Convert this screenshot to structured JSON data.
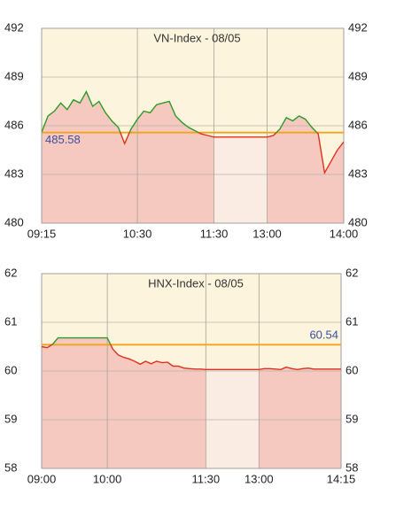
{
  "chart_data": [
    {
      "type": "line",
      "title": "VN-Index - 08/05",
      "x": [
        "09:15",
        "09:20",
        "09:25",
        "09:30",
        "09:35",
        "09:40",
        "09:45",
        "09:50",
        "09:55",
        "10:00",
        "10:05",
        "10:10",
        "10:15",
        "10:20",
        "10:25",
        "10:30",
        "10:35",
        "10:40",
        "10:45",
        "10:50",
        "10:55",
        "11:00",
        "11:05",
        "11:10",
        "11:15",
        "11:20",
        "11:25",
        "11:30",
        "13:00",
        "13:05",
        "13:10",
        "13:15",
        "13:20",
        "13:25",
        "13:30",
        "13:35",
        "13:40",
        "13:45",
        "13:50",
        "13:55",
        "14:00"
      ],
      "values": [
        485.6,
        486.6,
        486.9,
        487.4,
        487.0,
        487.6,
        487.4,
        488.1,
        487.2,
        487.5,
        486.8,
        486.3,
        485.9,
        484.9,
        485.8,
        486.4,
        486.9,
        486.8,
        487.3,
        487.4,
        487.5,
        486.6,
        486.2,
        485.9,
        485.7,
        485.5,
        485.4,
        485.3,
        485.3,
        485.4,
        485.8,
        486.5,
        486.3,
        486.6,
        486.4,
        485.9,
        485.5,
        483.1,
        483.8,
        484.5,
        485.0
      ],
      "reference": 485.58,
      "xticks": [
        "09:15",
        "10:30",
        "11:30",
        "13:00",
        "14:00"
      ],
      "break": [
        "11:30",
        "13:00"
      ],
      "ylim": [
        480,
        492
      ],
      "yticks": [
        480,
        483,
        486,
        489,
        492
      ],
      "grid": true,
      "colors": {
        "above": "#2f9a2a",
        "below": "#e0301e",
        "reference": "#f2a31c",
        "fill": "#f5c8c0",
        "break_fill": "#fbece3",
        "background": "#fcf4dc"
      }
    },
    {
      "type": "line",
      "title": "HNX-Index - 08/05",
      "x": [
        "09:00",
        "09:05",
        "09:10",
        "09:15",
        "09:20",
        "09:25",
        "09:30",
        "09:35",
        "09:40",
        "09:45",
        "09:50",
        "09:55",
        "10:00",
        "10:05",
        "10:10",
        "10:15",
        "10:20",
        "10:25",
        "10:30",
        "10:35",
        "10:40",
        "10:45",
        "10:50",
        "10:55",
        "11:00",
        "11:05",
        "11:10",
        "11:15",
        "11:20",
        "11:25",
        "11:30",
        "13:00",
        "13:05",
        "13:10",
        "13:15",
        "13:20",
        "13:25",
        "13:30",
        "13:35",
        "13:40",
        "13:45",
        "13:50",
        "13:55",
        "14:00",
        "14:05",
        "14:10",
        "14:15"
      ],
      "values": [
        60.5,
        60.48,
        60.55,
        60.68,
        60.68,
        60.68,
        60.68,
        60.68,
        60.68,
        60.68,
        60.68,
        60.68,
        60.68,
        60.45,
        60.33,
        60.28,
        60.25,
        60.2,
        60.14,
        60.2,
        60.15,
        60.2,
        60.17,
        60.18,
        60.1,
        60.1,
        60.06,
        60.05,
        60.04,
        60.04,
        60.03,
        60.03,
        60.05,
        60.05,
        60.04,
        60.03,
        60.08,
        60.05,
        60.03,
        60.05,
        60.06,
        60.04,
        60.04,
        60.04,
        60.04,
        60.04,
        60.04
      ],
      "reference": 60.54,
      "xticks": [
        "09:00",
        "10:00",
        "11:30",
        "13:00",
        "14:15"
      ],
      "break": [
        "11:30",
        "13:00"
      ],
      "ylim": [
        58,
        62
      ],
      "yticks": [
        58,
        59,
        60,
        61,
        62
      ],
      "grid": true,
      "colors": {
        "above": "#2f9a2a",
        "below": "#e0301e",
        "reference": "#f2a31c",
        "fill": "#f5c8c0",
        "break_fill": "#fbece3",
        "background": "#fcf4dc"
      }
    }
  ]
}
